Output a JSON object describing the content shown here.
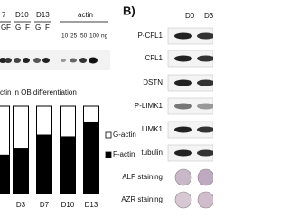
{
  "panel_a": {
    "lane_labels": [
      "7",
      "D10",
      "D13"
    ],
    "actin_label": "actin",
    "gf_labels": [
      "G",
      "F",
      "G",
      "F",
      "G",
      "F"
    ],
    "standard_labels": [
      "10",
      "25",
      "50",
      "100",
      "ng"
    ]
  },
  "chart_data": {
    "type": "bar",
    "stacked": true,
    "title": "ctin in OB differentiation",
    "categories": [
      null,
      "D3",
      "D7",
      "D10",
      "D13"
    ],
    "series": [
      {
        "name": "F-actin",
        "color": "#000000",
        "values": [
          44,
          52,
          67,
          65,
          82
        ]
      },
      {
        "name": "G-actin",
        "color": "#ffffff",
        "values": [
          56,
          48,
          33,
          35,
          18
        ]
      }
    ]
  },
  "panel_b": {
    "label": "B)",
    "columns": [
      "D0",
      "D3"
    ],
    "rows": [
      "P-CFL1",
      "CFL1",
      "DSTN",
      "P-LIMK1",
      "LIMK1",
      "tubulin",
      "ALP staining",
      "AZR staining"
    ]
  }
}
